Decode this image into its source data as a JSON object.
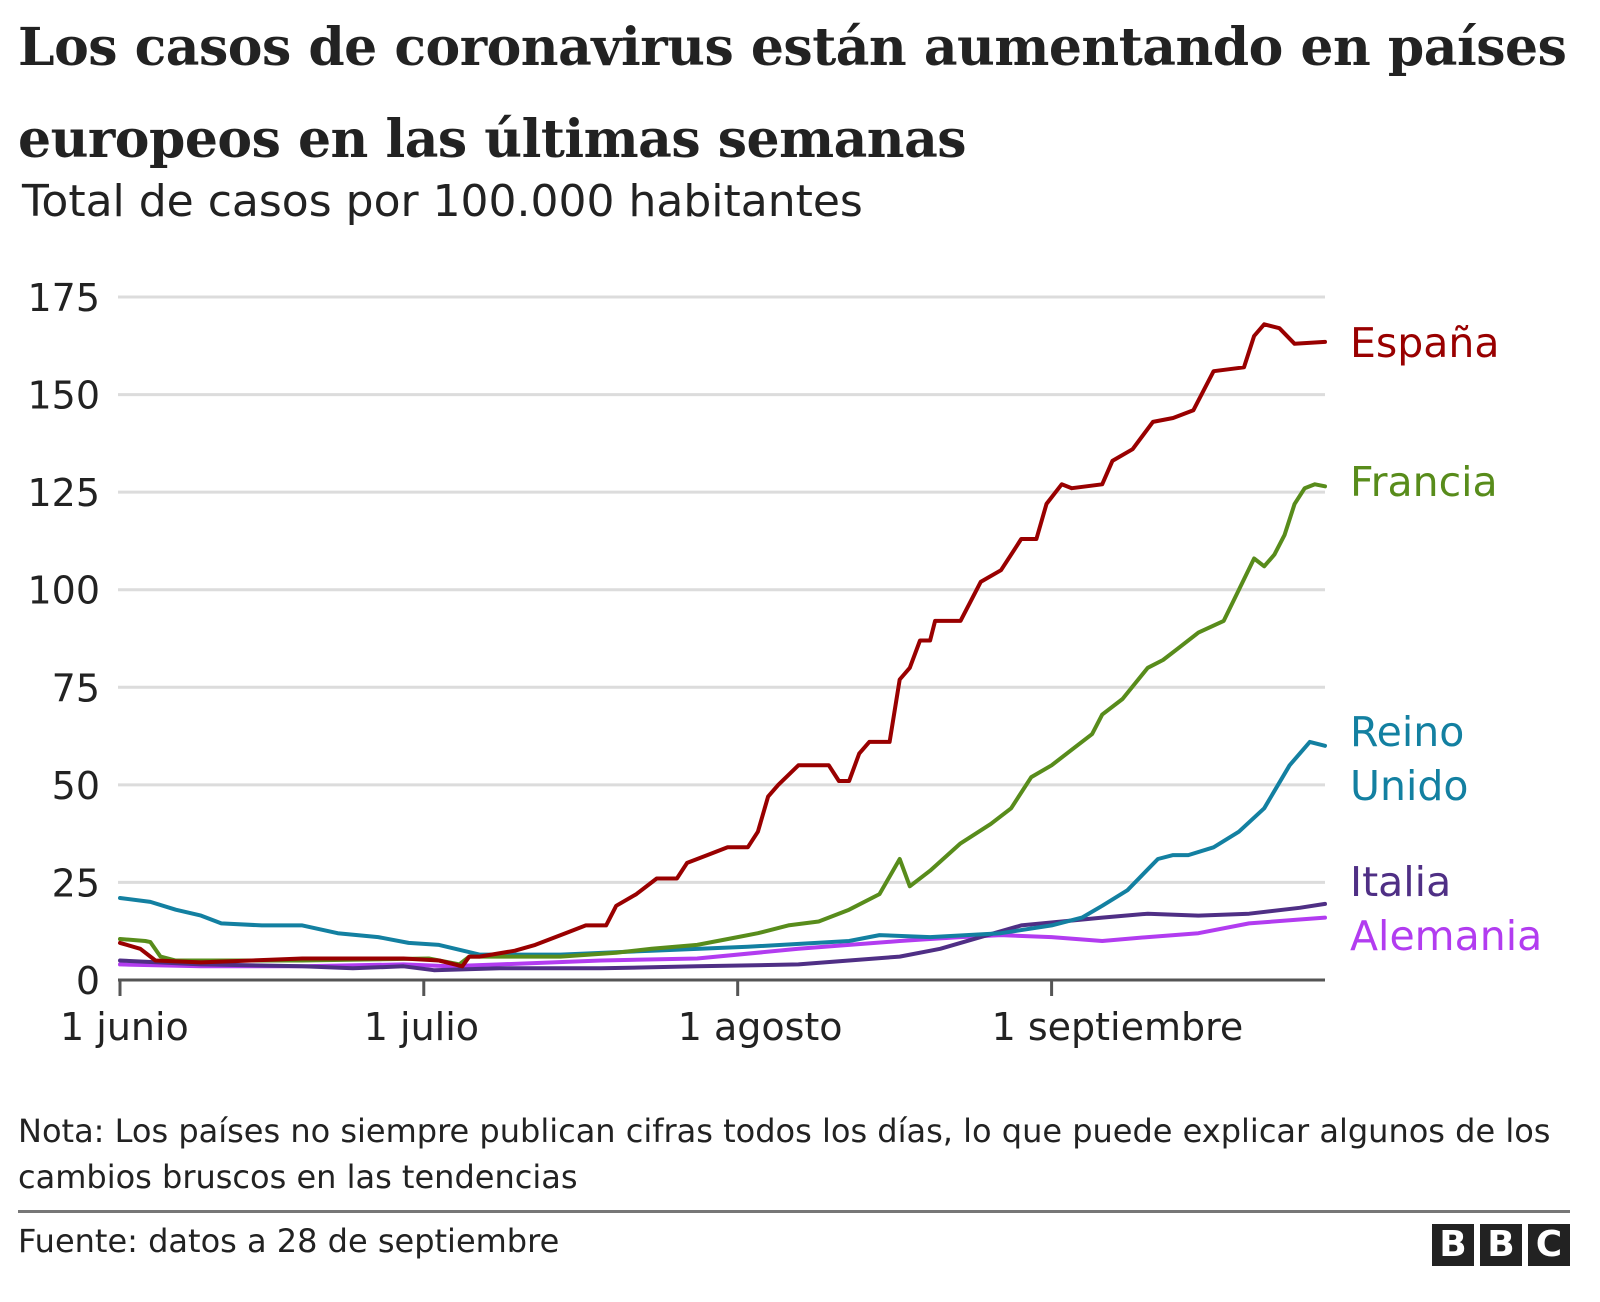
{
  "chart_data": {
    "type": "line",
    "title": "Los casos de coronavirus están aumentando en países europeos en las últimas semanas",
    "subtitle": "Total de casos por 100.000 habitantes",
    "xlabel": "",
    "ylabel": "",
    "x_unit": "days since 1 June 2020",
    "xlim": [
      0,
      119
    ],
    "ylim": [
      0,
      175
    ],
    "yticks": [
      0,
      25,
      50,
      75,
      100,
      125,
      150,
      175
    ],
    "xticks": [
      {
        "day": 0,
        "label": "1 junio"
      },
      {
        "day": 30,
        "label": "1 julio"
      },
      {
        "day": 61,
        "label": "1 agosto"
      },
      {
        "day": 92,
        "label": "1 septiembre"
      }
    ],
    "grid": true,
    "legend": "direct labels at line ends (right)",
    "series": [
      {
        "name": "España",
        "color": "#990000",
        "points": [
          [
            0,
            9.5
          ],
          [
            2,
            8
          ],
          [
            3.5,
            5
          ],
          [
            8,
            4.5
          ],
          [
            18,
            5.5
          ],
          [
            28,
            5.5
          ],
          [
            31.5,
            5
          ],
          [
            33.8,
            3.5
          ],
          [
            34.5,
            6
          ],
          [
            35.5,
            6
          ],
          [
            39,
            7.5
          ],
          [
            41,
            9
          ],
          [
            44,
            12
          ],
          [
            46,
            14
          ],
          [
            48,
            14
          ],
          [
            49,
            19
          ],
          [
            51,
            22
          ],
          [
            53,
            26
          ],
          [
            55,
            26
          ],
          [
            56,
            30
          ],
          [
            58,
            32
          ],
          [
            60,
            34
          ],
          [
            62,
            34
          ],
          [
            63,
            38
          ],
          [
            64,
            47
          ],
          [
            65,
            50
          ],
          [
            67,
            55
          ],
          [
            70,
            55
          ],
          [
            71,
            51
          ],
          [
            72,
            51
          ],
          [
            73,
            58
          ],
          [
            74,
            61
          ],
          [
            76,
            61
          ],
          [
            77,
            77
          ],
          [
            78,
            80
          ],
          [
            79,
            87
          ],
          [
            80,
            87
          ],
          [
            80.5,
            92
          ],
          [
            83,
            92
          ],
          [
            85,
            102
          ],
          [
            87,
            105
          ],
          [
            88.5,
            111
          ],
          [
            89,
            113
          ],
          [
            90.5,
            113
          ],
          [
            91.5,
            122
          ],
          [
            93,
            127
          ],
          [
            94,
            126
          ],
          [
            97,
            127
          ],
          [
            98,
            133
          ],
          [
            100,
            136
          ],
          [
            102,
            143
          ],
          [
            104,
            144
          ],
          [
            106,
            146
          ],
          [
            107,
            151
          ],
          [
            108,
            156
          ],
          [
            111,
            157
          ],
          [
            112,
            165
          ],
          [
            113,
            168
          ],
          [
            114.5,
            167
          ],
          [
            116,
            163
          ],
          [
            119,
            163.5
          ]
        ]
      },
      {
        "name": "Francia",
        "color": "#588c1b",
        "points": [
          [
            0,
            10.5
          ],
          [
            2.5,
            10
          ],
          [
            3,
            9.7
          ],
          [
            4,
            6
          ],
          [
            5.5,
            5
          ],
          [
            18,
            5
          ],
          [
            30.5,
            5.5
          ],
          [
            33.5,
            4
          ],
          [
            34.5,
            6
          ],
          [
            43.5,
            6
          ],
          [
            49,
            7
          ],
          [
            52.5,
            8
          ],
          [
            57,
            9
          ],
          [
            61,
            11
          ],
          [
            63,
            12
          ],
          [
            66,
            14
          ],
          [
            69,
            15
          ],
          [
            72,
            18
          ],
          [
            75,
            22
          ],
          [
            77,
            31
          ],
          [
            78,
            24
          ],
          [
            80,
            28
          ],
          [
            83,
            35
          ],
          [
            86,
            40
          ],
          [
            88,
            44
          ],
          [
            90,
            52
          ],
          [
            92,
            55
          ],
          [
            94,
            59
          ],
          [
            96,
            63
          ],
          [
            97,
            68
          ],
          [
            99,
            72
          ],
          [
            101.5,
            80
          ],
          [
            103,
            82
          ],
          [
            104.5,
            85
          ],
          [
            106.5,
            89
          ],
          [
            109,
            92
          ],
          [
            110.5,
            100
          ],
          [
            112,
            108
          ],
          [
            113,
            106
          ],
          [
            114,
            109
          ],
          [
            115,
            114
          ],
          [
            116,
            122
          ],
          [
            117,
            126
          ],
          [
            118,
            127
          ],
          [
            119,
            126.5
          ]
        ]
      },
      {
        "name": "Reino Unido",
        "label_lines": [
          "Reino",
          "Unido"
        ],
        "color": "#1380a1",
        "points": [
          [
            0,
            21
          ],
          [
            3,
            20
          ],
          [
            5.5,
            18
          ],
          [
            8,
            16.5
          ],
          [
            10,
            14.5
          ],
          [
            14,
            14
          ],
          [
            18,
            14
          ],
          [
            21.5,
            12
          ],
          [
            25.5,
            11
          ],
          [
            28.5,
            9.5
          ],
          [
            31.5,
            9
          ],
          [
            35.5,
            6.5
          ],
          [
            43.5,
            6.5
          ],
          [
            52.5,
            7.5
          ],
          [
            62,
            8.5
          ],
          [
            72,
            10
          ],
          [
            75,
            11.5
          ],
          [
            80,
            11
          ],
          [
            87,
            12
          ],
          [
            92,
            14
          ],
          [
            95,
            16
          ],
          [
            97,
            19
          ],
          [
            99.5,
            23
          ],
          [
            102.5,
            31
          ],
          [
            104,
            32
          ],
          [
            105.5,
            32
          ],
          [
            108,
            34
          ],
          [
            110.5,
            38
          ],
          [
            113,
            44
          ],
          [
            115.5,
            55
          ],
          [
            117.5,
            61
          ],
          [
            119,
            60
          ]
        ]
      },
      {
        "name": "Italia",
        "color": "#4f2f85",
        "points": [
          [
            0,
            5
          ],
          [
            8,
            4
          ],
          [
            18,
            3.5
          ],
          [
            23,
            3
          ],
          [
            28,
            3.5
          ],
          [
            31,
            2.5
          ],
          [
            37.5,
            3
          ],
          [
            47.5,
            3
          ],
          [
            57,
            3.5
          ],
          [
            67,
            4
          ],
          [
            72,
            5
          ],
          [
            77,
            6
          ],
          [
            81,
            8
          ],
          [
            85,
            11
          ],
          [
            89,
            14
          ],
          [
            93,
            15
          ],
          [
            97,
            16
          ],
          [
            101.5,
            17
          ],
          [
            106.5,
            16.5
          ],
          [
            111.5,
            17
          ],
          [
            116.5,
            18.5
          ],
          [
            119,
            19.5
          ]
        ]
      },
      {
        "name": "Alemania",
        "color": "#b23cf0",
        "points": [
          [
            0,
            4
          ],
          [
            8,
            3.5
          ],
          [
            18,
            3.5
          ],
          [
            28,
            4
          ],
          [
            32.5,
            3.5
          ],
          [
            37.5,
            4
          ],
          [
            47.5,
            5
          ],
          [
            57,
            5.5
          ],
          [
            67,
            8
          ],
          [
            72,
            9
          ],
          [
            77,
            10
          ],
          [
            80,
            10.5
          ],
          [
            83,
            11
          ],
          [
            87,
            11.5
          ],
          [
            92,
            11
          ],
          [
            97,
            10
          ],
          [
            101.5,
            11
          ],
          [
            106.5,
            12
          ],
          [
            111.5,
            14.5
          ],
          [
            116.5,
            15.5
          ],
          [
            119,
            16
          ]
        ]
      }
    ]
  },
  "note": "Nota: Los países no siempre publican cifras todos los días, lo que puede explicar algunos de los cambios bruscos en las tendencias",
  "source": "Fuente: datos a 28 de septiembre",
  "logo": "BBC"
}
